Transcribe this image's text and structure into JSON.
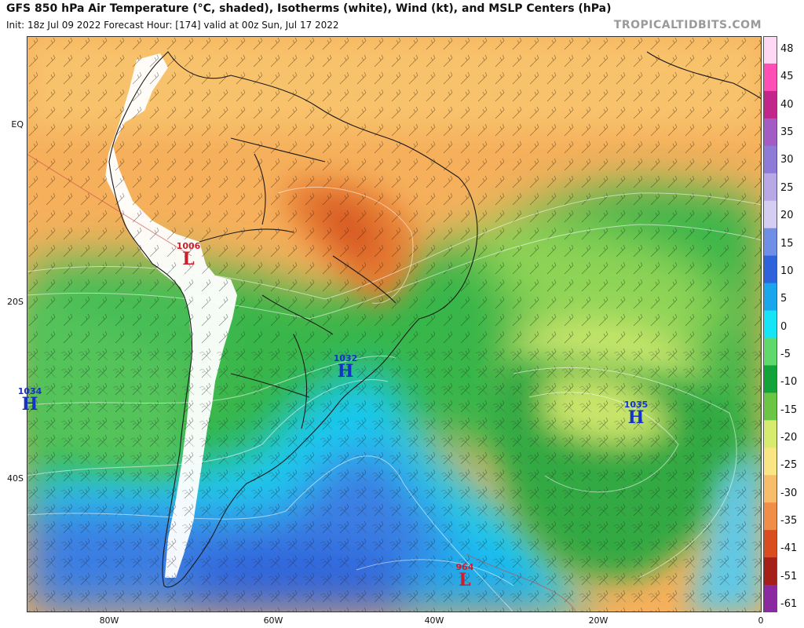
{
  "title": "GFS 850 hPa Air Temperature (°C, shaded), Isotherms (white), Wind (kt), and MSLP Centers (hPa)",
  "subtitle": "Init: 18z Jul 09 2022   Forecast Hour: [174]   valid at 00z Sun, Jul 17 2022",
  "brand": "TROPICALTIDBITS.COM",
  "lat_labels": [
    "EQ",
    "20S",
    "40S"
  ],
  "lon_labels": [
    "80W",
    "60W",
    "40W",
    "20W",
    "0"
  ],
  "colorbar": {
    "labels": [
      "48",
      "45",
      "40",
      "35",
      "30",
      "25",
      "20",
      "15",
      "10",
      "5",
      "0",
      "-5",
      "-10",
      "-15",
      "-20",
      "-25",
      "-30",
      "-35",
      "-41",
      "-51",
      "-61"
    ],
    "colors": [
      "#ffd9f3",
      "#ff4fb6",
      "#c2268a",
      "#a35cc4",
      "#8e7bd7",
      "#b9a8e6",
      "#d6cdf2",
      "#6f8fe6",
      "#2f63dc",
      "#1aa6ec",
      "#16e5f7",
      "#5fd96c",
      "#12a33a",
      "#6cc645",
      "#d7ec6e",
      "#f9e583",
      "#f7bd6b",
      "#f08d46",
      "#d94d1e",
      "#a6201a",
      "#8b2aa0"
    ]
  },
  "pressure_centers": [
    {
      "type": "H",
      "value": "1034"
    },
    {
      "type": "L",
      "value": "1006"
    },
    {
      "type": "H",
      "value": "1032"
    },
    {
      "type": "H",
      "value": "1035"
    },
    {
      "type": "L",
      "value": "964"
    }
  ]
}
